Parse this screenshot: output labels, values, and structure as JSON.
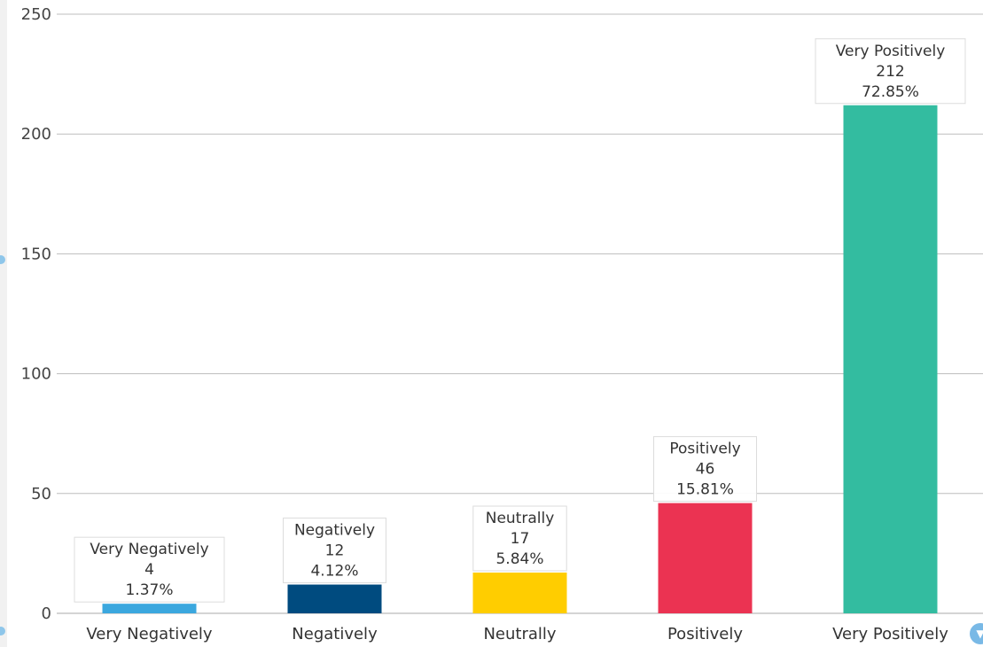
{
  "chart_data": {
    "type": "bar",
    "categories": [
      "Very Negatively",
      "Negatively",
      "Neutrally",
      "Positively",
      "Very Positively"
    ],
    "values": [
      4,
      12,
      17,
      46,
      212
    ],
    "percentages": [
      "1.37%",
      "4.12%",
      "5.84%",
      "15.81%",
      "72.85%"
    ],
    "colors": [
      "#3ba7de",
      "#004b7f",
      "#ffcd00",
      "#eb3352",
      "#33bca0"
    ],
    "ylim": [
      0,
      250
    ],
    "yticks": [
      0,
      50,
      100,
      150,
      200,
      250
    ],
    "grid": true,
    "legend": "none"
  },
  "controls": {
    "filter_icon": "filter-icon"
  }
}
